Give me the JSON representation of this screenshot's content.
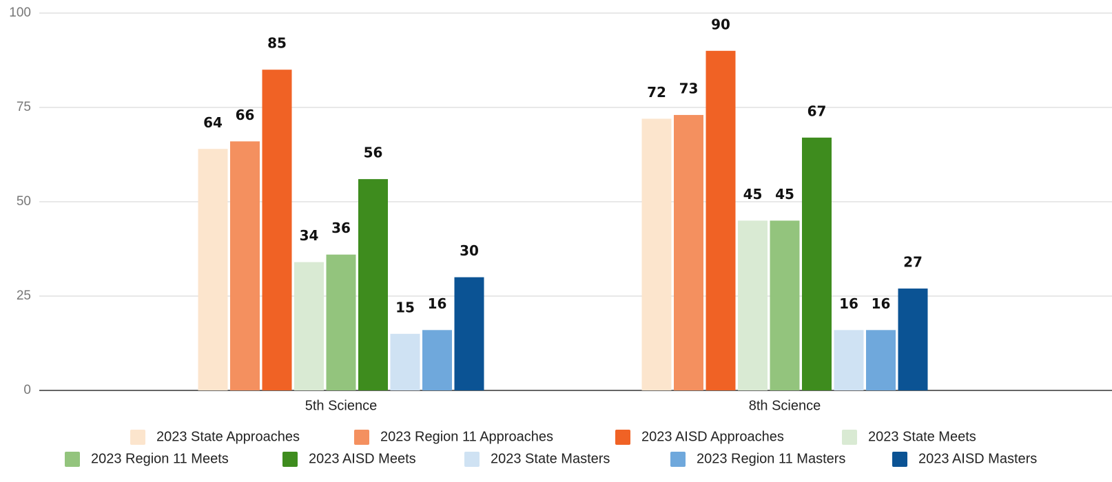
{
  "chart_data": {
    "type": "bar",
    "categories": [
      "5th Science",
      "8th Science"
    ],
    "series": [
      {
        "name": "2023 State Approaches",
        "color": "#fce5cd",
        "values": [
          64,
          72
        ]
      },
      {
        "name": "2023 Region 11 Approaches",
        "color": "#f4905f",
        "values": [
          66,
          73
        ]
      },
      {
        "name": "2023 AISD Approaches",
        "color": "#f06225",
        "values": [
          85,
          90
        ]
      },
      {
        "name": "2023 State Meets",
        "color": "#d9ead3",
        "values": [
          34,
          45
        ]
      },
      {
        "name": "2023 Region 11 Meets",
        "color": "#93c47d",
        "values": [
          36,
          45
        ]
      },
      {
        "name": "2023 AISD Meets",
        "color": "#3e8c1e",
        "values": [
          56,
          67
        ]
      },
      {
        "name": "2023 State Masters",
        "color": "#cfe2f3",
        "values": [
          15,
          16
        ]
      },
      {
        "name": "2023 Region 11 Masters",
        "color": "#6fa8dc",
        "values": [
          16,
          16
        ]
      },
      {
        "name": "2023 AISD Masters",
        "color": "#0b5394",
        "values": [
          30,
          27
        ]
      }
    ],
    "ylim": [
      0,
      100
    ],
    "yticks": [
      0,
      25,
      50,
      75,
      100
    ],
    "grid": true,
    "legend": "bottom"
  }
}
